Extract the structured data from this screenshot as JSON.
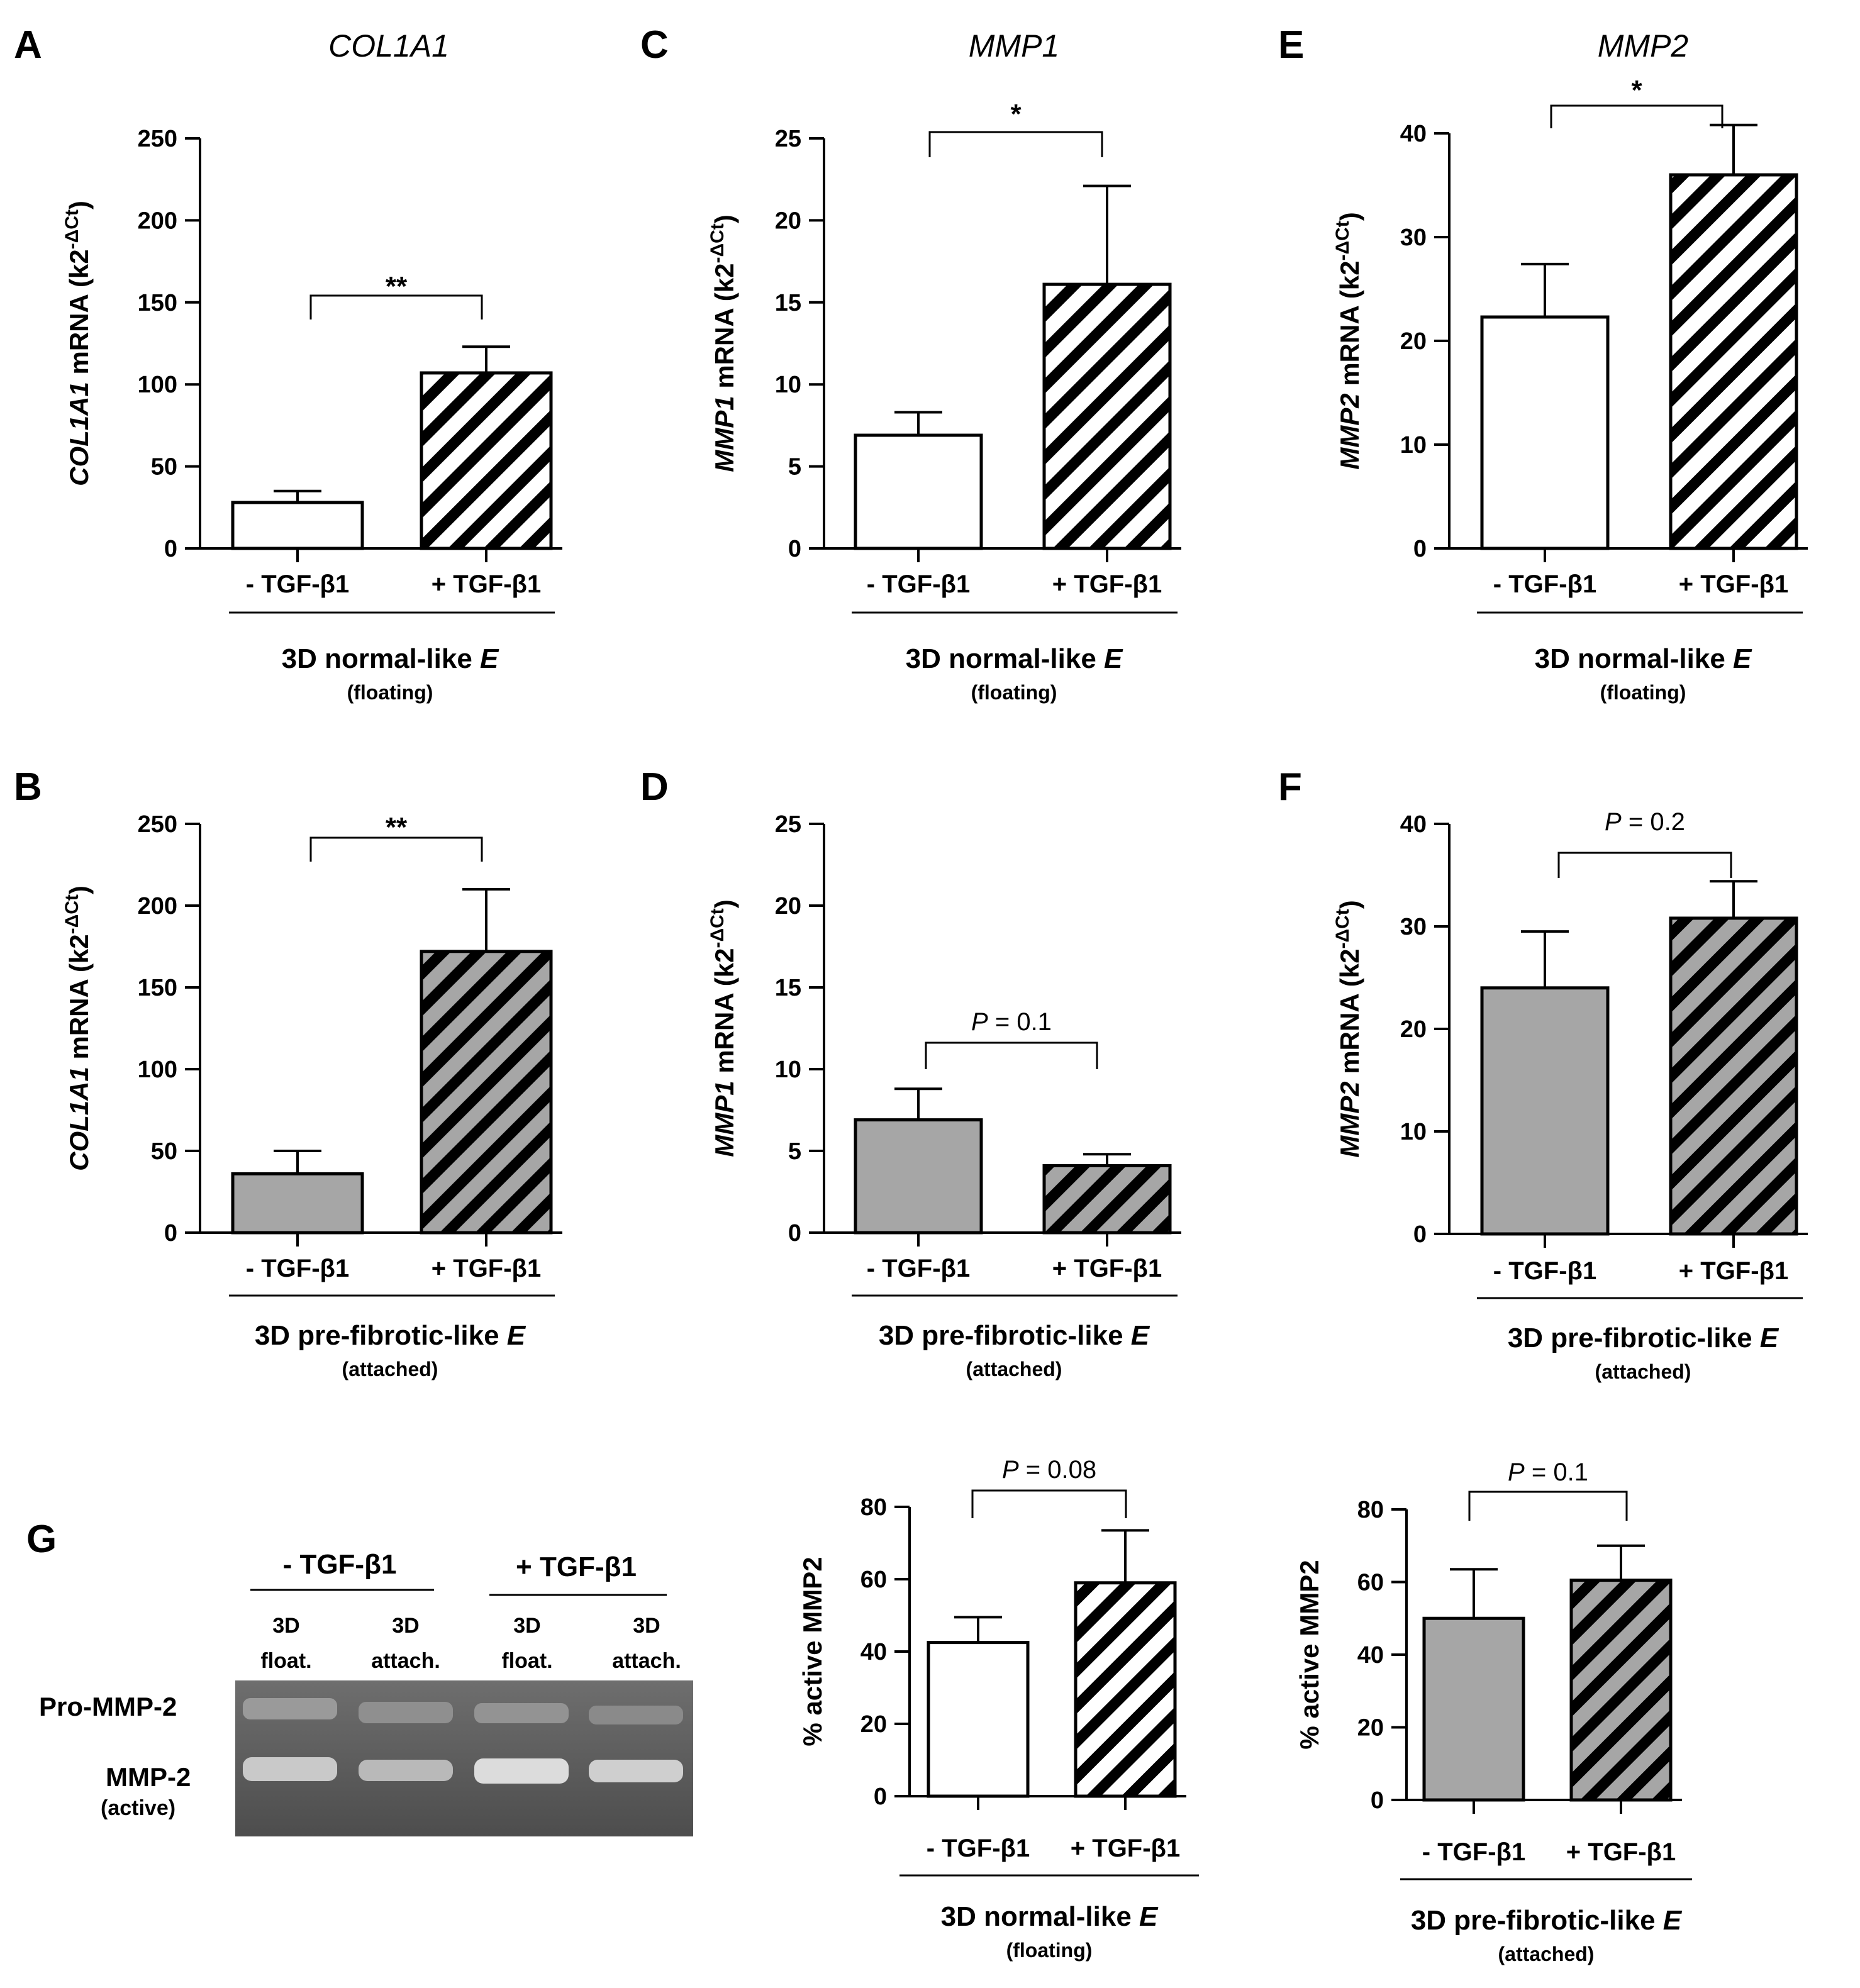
{
  "colors": {
    "white_bar": "#ffffff",
    "gray_bar": "#a6a6a6",
    "ink": "#000000",
    "gel_bg": "#5a5a5a",
    "gel_band": "#d8d8d8"
  },
  "chart_data": [
    {
      "id": "A",
      "letter": "A",
      "type": "bar",
      "title": "COL1A1",
      "ylabel_italic": "COL1A1",
      "ylabel_rest": " mRNA (k2",
      "ylabel_sup": "-ΔCt",
      "ylabel_end": ")",
      "categories": [
        "- TGF-β1",
        "+ TGF-β1"
      ],
      "values": [
        28,
        107
      ],
      "errors": [
        7,
        16
      ],
      "fill": "white",
      "ylim": [
        0,
        250
      ],
      "yticks": [
        0,
        50,
        100,
        150,
        200,
        250
      ],
      "group_label": "3D normal-like",
      "group_label_italic": "E",
      "group_sub": "(floating)",
      "significance": "**",
      "sig_italic": ""
    },
    {
      "id": "B",
      "letter": "B",
      "type": "bar",
      "title": "",
      "ylabel_italic": "COL1A1",
      "ylabel_rest": " mRNA (k2",
      "ylabel_sup": "-ΔCt",
      "ylabel_end": ")",
      "categories": [
        "- TGF-β1",
        "+ TGF-β1"
      ],
      "values": [
        36,
        172
      ],
      "errors": [
        14,
        38
      ],
      "fill": "gray",
      "ylim": [
        0,
        250
      ],
      "yticks": [
        0,
        50,
        100,
        150,
        200,
        250
      ],
      "group_label": "3D pre-fibrotic-like",
      "group_label_italic": "E",
      "group_sub": "(attached)",
      "significance": "**",
      "sig_italic": ""
    },
    {
      "id": "C",
      "letter": "C",
      "type": "bar",
      "title": "MMP1",
      "ylabel_italic": "MMP1",
      "ylabel_rest": " mRNA (k2",
      "ylabel_sup": "-ΔCt",
      "ylabel_end": ")",
      "categories": [
        "- TGF-β1",
        "+ TGF-β1"
      ],
      "values": [
        6.9,
        16.1
      ],
      "errors": [
        1.4,
        6.0
      ],
      "fill": "white",
      "ylim": [
        0,
        25
      ],
      "yticks": [
        0,
        5,
        10,
        15,
        20,
        25
      ],
      "group_label": "3D normal-like",
      "group_label_italic": "E",
      "group_sub": "(floating)",
      "significance": "*",
      "sig_italic": ""
    },
    {
      "id": "D",
      "letter": "D",
      "type": "bar",
      "title": "",
      "ylabel_italic": "MMP1",
      "ylabel_rest": " mRNA (k2",
      "ylabel_sup": "-ΔCt",
      "ylabel_end": ")",
      "categories": [
        "- TGF-β1",
        "+ TGF-β1"
      ],
      "values": [
        6.9,
        4.1
      ],
      "errors": [
        1.9,
        0.7
      ],
      "fill": "gray",
      "ylim": [
        0,
        25
      ],
      "yticks": [
        0,
        5,
        10,
        15,
        20,
        25
      ],
      "group_label": "3D pre-fibrotic-like",
      "group_label_italic": "E",
      "group_sub": "(attached)",
      "significance": " = 0.1",
      "sig_italic": "P"
    },
    {
      "id": "E",
      "letter": "E",
      "type": "bar",
      "title": "MMP2",
      "ylabel_italic": "MMP2",
      "ylabel_rest": " mRNA (k2",
      "ylabel_sup": "-ΔCt",
      "ylabel_end": ")",
      "categories": [
        "- TGF-β1",
        "+ TGF-β1"
      ],
      "values": [
        22.3,
        36
      ],
      "errors": [
        5.1,
        4.8
      ],
      "fill": "white",
      "ylim": [
        0,
        40
      ],
      "yticks": [
        0,
        10,
        20,
        30,
        40
      ],
      "group_label": "3D normal-like",
      "group_label_italic": "E",
      "group_sub": "(floating)",
      "significance": "*",
      "sig_italic": ""
    },
    {
      "id": "F",
      "letter": "F",
      "type": "bar",
      "title": "",
      "ylabel_italic": "MMP2",
      "ylabel_rest": " mRNA (k2",
      "ylabel_sup": "-ΔCt",
      "ylabel_end": ")",
      "categories": [
        "- TGF-β1",
        "+ TGF-β1"
      ],
      "values": [
        24,
        30.8
      ],
      "errors": [
        5.5,
        3.6
      ],
      "fill": "gray",
      "ylim": [
        0,
        40
      ],
      "yticks": [
        0,
        10,
        20,
        30,
        40
      ],
      "group_label": "3D pre-fibrotic-like",
      "group_label_italic": "E",
      "group_sub": "(attached)",
      "significance": " = 0.2",
      "sig_italic": "P"
    },
    {
      "id": "G1",
      "letter": "",
      "type": "bar",
      "title": "",
      "ylabel_italic": "",
      "ylabel_rest": "% active MMP2",
      "ylabel_sup": "",
      "ylabel_end": "",
      "categories": [
        "- TGF-β1",
        "+ TGF-β1"
      ],
      "values": [
        42.5,
        59
      ],
      "errors": [
        7,
        14.5
      ],
      "fill": "white",
      "ylim": [
        0,
        80
      ],
      "yticks": [
        0,
        20,
        40,
        60,
        80
      ],
      "group_label": "3D normal-like",
      "group_label_italic": "E",
      "group_sub": "(floating)",
      "significance": " = 0.08",
      "sig_italic": "P"
    },
    {
      "id": "G2",
      "letter": "",
      "type": "bar",
      "title": "",
      "ylabel_italic": "",
      "ylabel_rest": "% active MMP2",
      "ylabel_sup": "",
      "ylabel_end": "",
      "categories": [
        "- TGF-β1",
        "+ TGF-β1"
      ],
      "values": [
        50,
        60.5
      ],
      "errors": [
        13.5,
        9.5
      ],
      "fill": "gray",
      "ylim": [
        0,
        80
      ],
      "yticks": [
        0,
        20,
        40,
        60,
        80
      ],
      "group_label": "3D pre-fibrotic-like",
      "group_label_italic": "E",
      "group_sub": "(attached)",
      "significance": " = 0.1",
      "sig_italic": "P"
    }
  ],
  "gel": {
    "letter": "G",
    "groups": [
      "- TGF-β1",
      "+ TGF-β1"
    ],
    "lanes": [
      {
        "line1": "3D",
        "line2": "float."
      },
      {
        "line1": "3D",
        "line2": "attach."
      },
      {
        "line1": "3D",
        "line2": "float."
      },
      {
        "line1": "3D",
        "line2": "attach."
      }
    ],
    "band_labels": [
      {
        "name": "Pro-MMP-2",
        "sub": ""
      },
      {
        "name": "MMP-2",
        "sub": "(active)"
      }
    ]
  }
}
